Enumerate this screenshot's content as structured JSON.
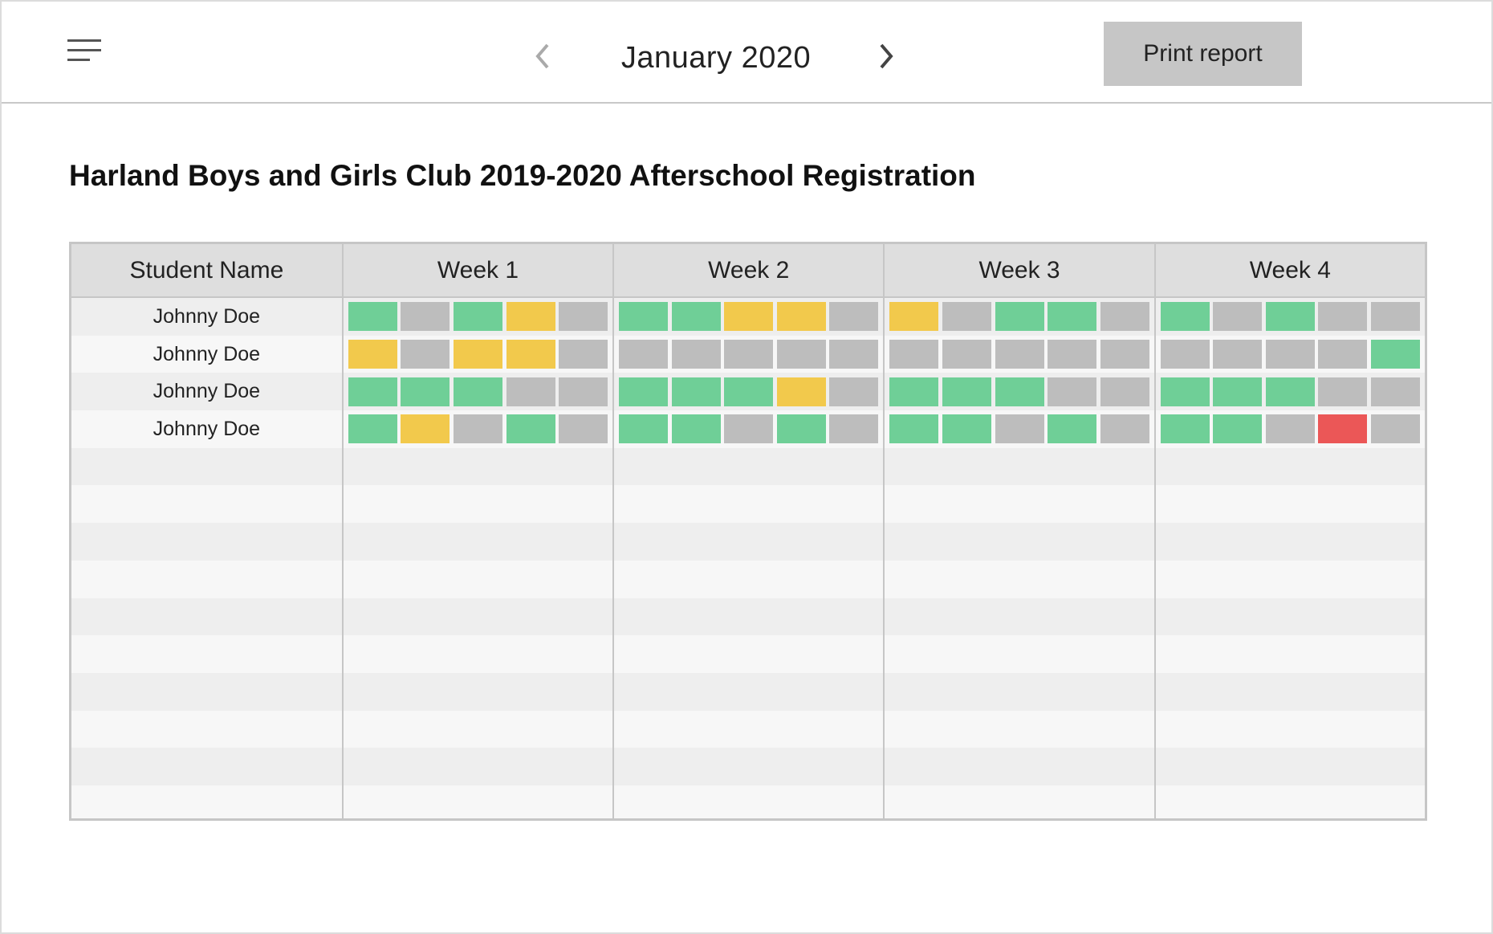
{
  "header": {
    "month": "January 2020",
    "print_label": "Print report",
    "icons": {
      "menu": "hamburger-menu-icon",
      "prev": "chevron-left-icon",
      "next": "chevron-right-icon"
    }
  },
  "title": "Harland Boys and Girls Club 2019-2020 Afterschool Registration",
  "table": {
    "columns": [
      "Student Name",
      "Week 1",
      "Week 2",
      "Week 3",
      "Week 4"
    ],
    "status_colors": {
      "present": "#6fcf97",
      "late": "#f2c94c",
      "none": "#bdbdbd",
      "absent": "#eb5757"
    },
    "rows": [
      {
        "name": "Johnny Doe",
        "weeks": [
          [
            "present",
            "none",
            "present",
            "late",
            "none"
          ],
          [
            "present",
            "present",
            "late",
            "late",
            "none"
          ],
          [
            "late",
            "none",
            "present",
            "present",
            "none"
          ],
          [
            "present",
            "none",
            "present",
            "none",
            "none"
          ]
        ]
      },
      {
        "name": "Johnny Doe",
        "weeks": [
          [
            "late",
            "none",
            "late",
            "late",
            "none"
          ],
          [
            "none",
            "none",
            "none",
            "none",
            "none"
          ],
          [
            "none",
            "none",
            "none",
            "none",
            "none"
          ],
          [
            "none",
            "none",
            "none",
            "none",
            "present"
          ]
        ]
      },
      {
        "name": "Johnny Doe",
        "weeks": [
          [
            "present",
            "present",
            "present",
            "none",
            "none"
          ],
          [
            "present",
            "present",
            "present",
            "late",
            "none"
          ],
          [
            "present",
            "present",
            "present",
            "none",
            "none"
          ],
          [
            "present",
            "present",
            "present",
            "none",
            "none"
          ]
        ]
      },
      {
        "name": "Johnny Doe",
        "weeks": [
          [
            "present",
            "late",
            "none",
            "present",
            "none"
          ],
          [
            "present",
            "present",
            "none",
            "present",
            "none"
          ],
          [
            "present",
            "present",
            "none",
            "present",
            "none"
          ],
          [
            "present",
            "present",
            "none",
            "absent",
            "none"
          ]
        ]
      }
    ],
    "empty_rows": 10
  }
}
